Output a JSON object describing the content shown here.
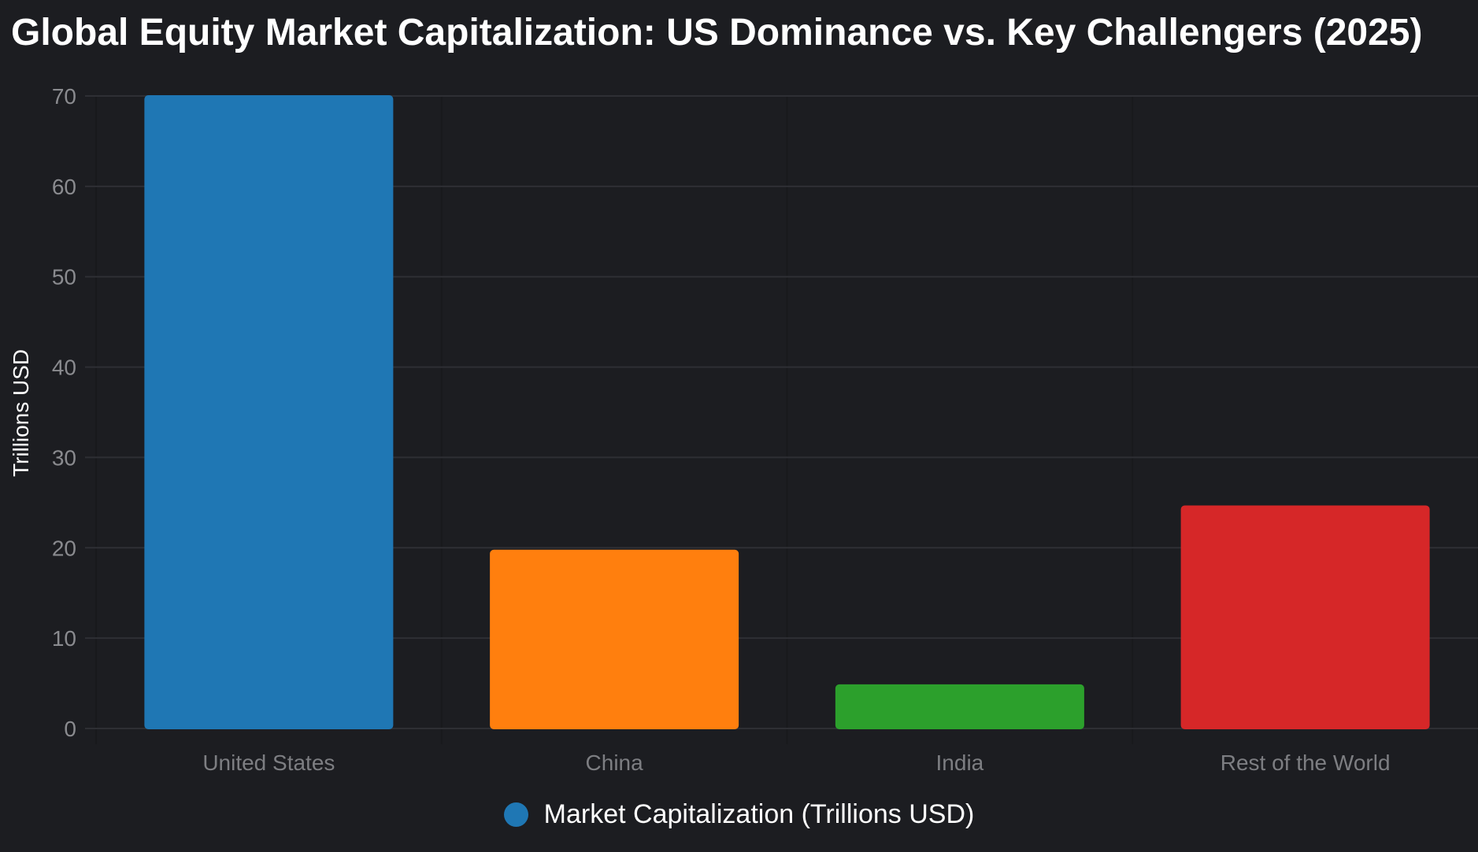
{
  "chart_data": {
    "type": "bar",
    "title": "Global Equity Market Capitalization: US Dominance vs. Key Challengers (2025)",
    "categories": [
      "United States",
      "China",
      "India",
      "Rest of the World"
    ],
    "series": [
      {
        "name": "Market Capitalization (Trillions USD)",
        "values": [
          70,
          19.7,
          4.8,
          24.6
        ],
        "colors": [
          "#1f77b4",
          "#ff7f0e",
          "#2ca02c",
          "#d62728"
        ]
      }
    ],
    "xlabel": "",
    "ylabel": "Trillions USD",
    "ylim": [
      0,
      70
    ],
    "yticks": [
      0,
      10,
      20,
      30,
      40,
      50,
      60,
      70
    ],
    "grid": true,
    "legend_position": "bottom-center"
  },
  "colors": {
    "background": "#1c1d21",
    "legend_swatch": "#1f77b4"
  }
}
